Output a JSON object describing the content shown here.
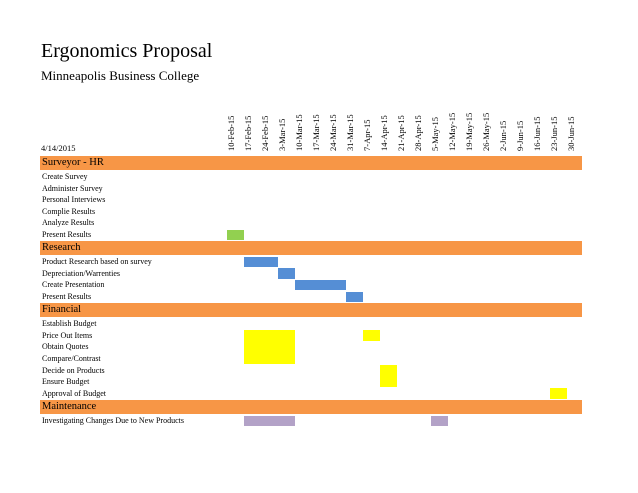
{
  "title": "Ergonomics Proposal",
  "subtitle": "Minneapolis Business College",
  "date": "4/14/2015",
  "week_dates": [
    "10-Feb-15",
    "17-Feb-15",
    "24-Feb-15",
    "3-Mar-15",
    "10-Mar-15",
    "17-Mar-15",
    "24-Mar-15",
    "31-Mar-15",
    "7-Apr-15",
    "14-Apr-15",
    "21-Apr-15",
    "28-Apr-15",
    "5-May-15",
    "12-May-15",
    "19-May-15",
    "26-May-15",
    "2-Jun-15",
    "9-Jun-15",
    "16-Jun-15",
    "23-Jun-15",
    "30-Jun-15"
  ],
  "colors": {
    "header": "#f79646",
    "green": "#92d050",
    "blue": "#558ed5",
    "yellow": "#ffff00",
    "purple": "#b3a2c7"
  },
  "sections": [
    {
      "name": "Surveyor - HR",
      "tasks": [
        {
          "label": "Create Survey",
          "bars": []
        },
        {
          "label": "Administer Survey",
          "bars": []
        },
        {
          "label": "Personal Interviews",
          "bars": []
        },
        {
          "label": "Complie Results",
          "bars": []
        },
        {
          "label": "Analyze Results",
          "bars": []
        },
        {
          "label": "Present Results",
          "bars": [
            {
              "start": 0,
              "weeks": 1,
              "color": "green"
            }
          ]
        }
      ]
    },
    {
      "name": "Research",
      "tasks": [
        {
          "label": "Product Research based on survey",
          "bars": [
            {
              "start": 1,
              "weeks": 2,
              "color": "blue"
            }
          ]
        },
        {
          "label": "Depreciation/Warrenties",
          "bars": [
            {
              "start": 3,
              "weeks": 1,
              "color": "blue"
            }
          ]
        },
        {
          "label": "Create Presentation",
          "bars": [
            {
              "start": 4,
              "weeks": 3,
              "color": "blue"
            }
          ]
        },
        {
          "label": "Present Results",
          "bars": [
            {
              "start": 7,
              "weeks": 1,
              "color": "blue"
            }
          ]
        }
      ]
    },
    {
      "name": "Financial",
      "tasks": [
        {
          "label": "Establish Budget",
          "bars": []
        },
        {
          "label": "Price Out Items",
          "bars": [
            {
              "start": 1,
              "weeks": 3,
              "color": "yellow",
              "rows": 3
            },
            {
              "start": 8,
              "weeks": 1,
              "color": "yellow"
            }
          ]
        },
        {
          "label": "Obtain Quotes",
          "bars": []
        },
        {
          "label": "Compare/Contrast",
          "bars": []
        },
        {
          "label": "Decide on Products",
          "bars": [
            {
              "start": 9,
              "weeks": 1,
              "color": "yellow",
              "rows": 2
            }
          ]
        },
        {
          "label": "Ensure Budget",
          "bars": []
        },
        {
          "label": "Approval of Budget",
          "bars": [
            {
              "start": 19,
              "weeks": 1,
              "color": "yellow"
            }
          ]
        }
      ]
    },
    {
      "name": "Maintenance",
      "tasks": [
        {
          "label": "Investigating Changes Due to New Products",
          "bars": [
            {
              "start": 1,
              "weeks": 3,
              "color": "purple"
            },
            {
              "start": 12,
              "weeks": 1,
              "color": "purple"
            }
          ]
        }
      ]
    }
  ]
}
